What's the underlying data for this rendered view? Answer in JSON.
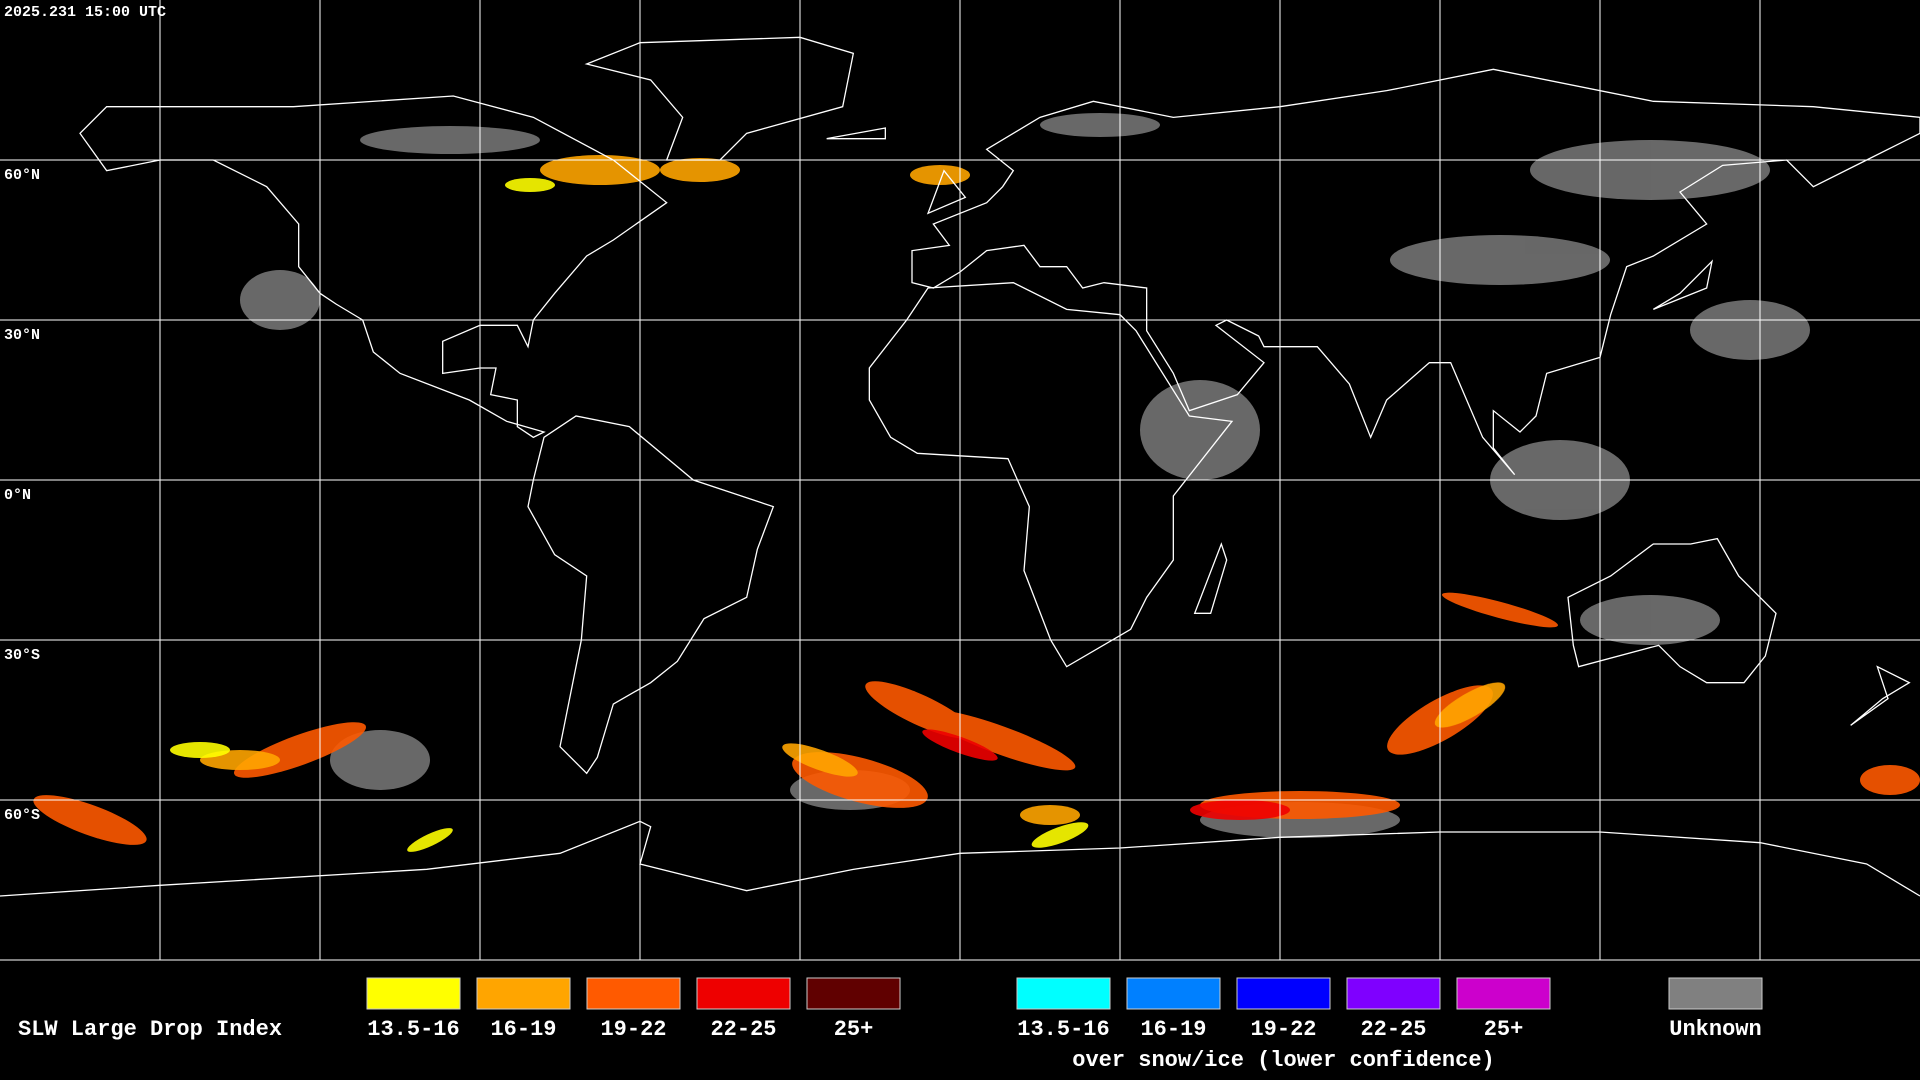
{
  "timestamp": "2025.231 15:00 UTC",
  "lat_labels": [
    "60°N",
    "30°N",
    "0°N",
    "30°S",
    "60°S"
  ],
  "legend": {
    "title": "SLW Large Drop Index",
    "groups": [
      {
        "items": [
          {
            "label": "13.5-16",
            "color": "#ffff00"
          },
          {
            "label": "16-19",
            "color": "#ffa500"
          },
          {
            "label": "19-22",
            "color": "#ff5a00"
          },
          {
            "label": "22-25",
            "color": "#ee0000"
          },
          {
            "label": "25+",
            "color": "#600000"
          }
        ]
      },
      {
        "items": [
          {
            "label": "13.5-16",
            "color": "#00ffff"
          },
          {
            "label": "16-19",
            "color": "#0080ff"
          },
          {
            "label": "19-22",
            "color": "#0000ff"
          },
          {
            "label": "22-25",
            "color": "#7f00ff"
          },
          {
            "label": "25+",
            "color": "#cc00cc"
          }
        ],
        "note": "over snow/ice (lower confidence)"
      },
      {
        "items": [
          {
            "label": "Unknown",
            "color": "#808080"
          }
        ]
      }
    ]
  }
}
